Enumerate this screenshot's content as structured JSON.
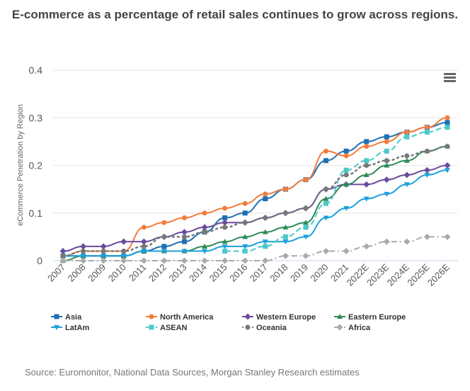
{
  "title": "E-commerce as a percentage of retail sales continues to grow across regions.",
  "source": "Source: Euromonitor, National Data Sources, Morgan Stanley Research estimates",
  "menu_icon": "hamburger-menu-icon",
  "chart_data": {
    "type": "line",
    "title": "E-commerce as a percentage of retail sales continues to grow across regions.",
    "xlabel": "",
    "ylabel": "eCommerce Penetration by Region",
    "ylim": [
      0,
      0.4
    ],
    "yticks": [
      "0",
      "0.1",
      "0.2",
      "0.3",
      "0.4"
    ],
    "grid": true,
    "legend_position": "bottom",
    "categories": [
      "2007",
      "2008",
      "2009",
      "2010",
      "2011",
      "2012",
      "2013",
      "2014",
      "2015",
      "2016",
      "2017",
      "2018",
      "2019",
      "2020",
      "2021",
      "2022E",
      "2023E",
      "2024E",
      "2025E",
      "2026E"
    ],
    "series": [
      {
        "name": "Asia",
        "color": "#1f6fb2",
        "marker": "square",
        "dash": "solid",
        "values": [
          0.01,
          0.01,
          0.01,
          0.01,
          0.02,
          0.03,
          0.04,
          0.06,
          0.09,
          0.1,
          0.13,
          0.15,
          0.17,
          0.21,
          0.23,
          0.25,
          0.26,
          0.27,
          0.28,
          0.29
        ]
      },
      {
        "name": "North America",
        "color": "#f47c3c",
        "marker": "circle",
        "dash": "solid",
        "values": [
          0.01,
          0.02,
          0.02,
          0.02,
          0.07,
          0.08,
          0.09,
          0.1,
          0.11,
          0.12,
          0.14,
          0.15,
          0.17,
          0.23,
          0.22,
          0.24,
          0.25,
          0.27,
          0.28,
          0.3
        ]
      },
      {
        "name": "Western Europe",
        "color": "#6a4c9c",
        "marker": "diamond",
        "dash": "solid",
        "values": [
          0.02,
          0.03,
          0.03,
          0.04,
          0.04,
          0.05,
          0.06,
          0.07,
          0.08,
          0.08,
          0.09,
          0.1,
          0.11,
          0.15,
          0.16,
          0.16,
          0.17,
          0.18,
          0.19,
          0.2
        ]
      },
      {
        "name": "Eastern Europe",
        "color": "#2e8b57",
        "marker": "triangle",
        "dash": "solid",
        "values": [
          0.0,
          0.01,
          0.01,
          0.01,
          0.02,
          0.02,
          0.02,
          0.03,
          0.04,
          0.05,
          0.06,
          0.07,
          0.08,
          0.13,
          0.16,
          0.18,
          0.2,
          0.21,
          0.23,
          0.24
        ]
      },
      {
        "name": "LatAm",
        "color": "#1ea0dc",
        "marker": "triangle-down",
        "dash": "solid",
        "values": [
          0.01,
          0.01,
          0.01,
          0.01,
          0.02,
          0.02,
          0.02,
          0.02,
          0.03,
          0.03,
          0.04,
          0.04,
          0.05,
          0.09,
          0.11,
          0.13,
          0.14,
          0.16,
          0.18,
          0.19
        ]
      },
      {
        "name": "ASEAN",
        "color": "#4cc9c9",
        "marker": "square",
        "dash": "dashed",
        "values": [
          null,
          null,
          null,
          null,
          null,
          null,
          null,
          null,
          0.02,
          0.02,
          0.03,
          0.05,
          0.07,
          0.12,
          0.19,
          0.21,
          0.23,
          0.26,
          0.27,
          0.28
        ]
      },
      {
        "name": "Oceania",
        "color": "#777777",
        "marker": "circle",
        "dash": "dotted",
        "values": [
          0.01,
          0.02,
          0.02,
          0.02,
          0.03,
          0.05,
          0.05,
          0.06,
          0.07,
          0.08,
          0.09,
          0.1,
          0.11,
          0.15,
          0.18,
          0.2,
          0.21,
          0.22,
          0.23,
          0.24
        ]
      },
      {
        "name": "Africa",
        "color": "#aaaaaa",
        "marker": "diamond",
        "dash": "dashdot",
        "values": [
          0.0,
          0.0,
          0.0,
          0.0,
          0.0,
          0.0,
          0.0,
          0.0,
          0.0,
          0.0,
          0.0,
          0.01,
          0.01,
          0.02,
          0.02,
          0.03,
          0.04,
          0.04,
          0.05,
          0.05
        ]
      }
    ]
  }
}
